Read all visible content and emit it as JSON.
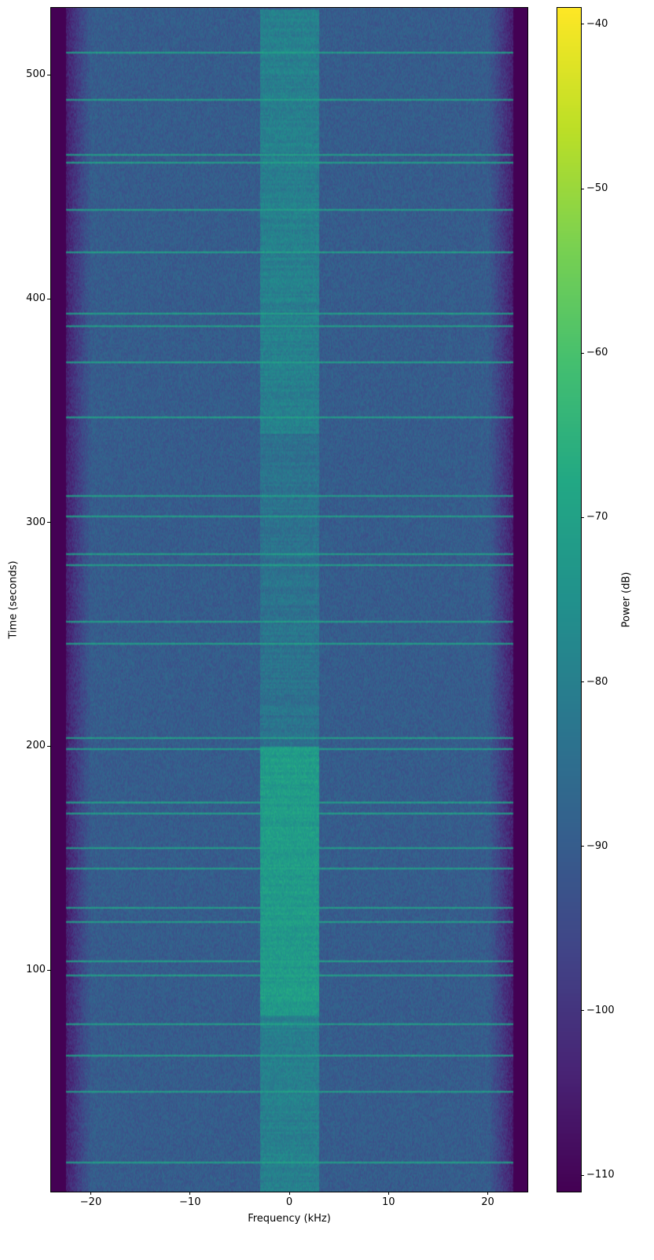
{
  "chart_data": {
    "type": "heatmap",
    "subtype": "spectrogram",
    "title": "",
    "xlabel": "Frequency (kHz)",
    "ylabel": "Time (seconds)",
    "xlim": [
      -24,
      24
    ],
    "ylim": [
      1,
      530
    ],
    "xticks": [
      -20,
      -10,
      0,
      10,
      20
    ],
    "xtick_labels": [
      "−20",
      "−10",
      "0",
      "10",
      "20"
    ],
    "yticks": [
      100,
      200,
      300,
      400,
      500
    ],
    "ytick_labels": [
      "100",
      "200",
      "300",
      "400",
      "500"
    ],
    "colormap": "viridis",
    "colorbar": {
      "label": "Power (dB)",
      "range": [
        -111,
        -39
      ],
      "ticks": [
        -40,
        -50,
        -60,
        -70,
        -80,
        -90,
        -100,
        -110
      ],
      "tick_labels": [
        "−40",
        "−50",
        "−60",
        "−70",
        "−80",
        "−90",
        "−100",
        "−110"
      ]
    },
    "background_power_db": -90,
    "edge_rolloff_khz": 20,
    "central_band": {
      "freq_range_khz": [
        -3,
        3
      ],
      "segments": [
        {
          "time_range": [
            1,
            80
          ],
          "power_db": -80
        },
        {
          "time_range": [
            80,
            200
          ],
          "power_db": -72
        },
        {
          "time_range": [
            200,
            340
          ],
          "power_db": -84
        },
        {
          "time_range": [
            340,
            530
          ],
          "power_db": -80
        }
      ]
    },
    "bright_horizontal_lines_s": [
      14,
      46,
      62,
      76,
      98,
      104,
      122,
      128,
      146,
      155,
      170,
      175,
      199,
      204,
      246,
      256,
      281,
      286,
      303,
      312,
      347,
      372,
      388,
      394,
      421,
      440,
      461,
      465,
      489,
      510
    ]
  }
}
